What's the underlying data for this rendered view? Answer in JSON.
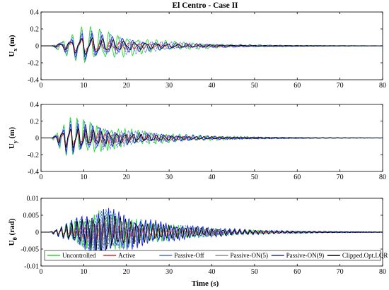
{
  "figure": {
    "title": "El Centro - Case II",
    "xlabel": "Time (s)"
  },
  "chart_data": [
    {
      "type": "line",
      "ylabel_main": "U",
      "ylabel_sub": "x",
      "ylabel_unit": "(m)",
      "xlim": [
        0,
        80
      ],
      "ylim": [
        -0.4,
        0.4
      ],
      "xticks": [
        "0",
        "10",
        "20",
        "30",
        "40",
        "50",
        "60",
        "70",
        "80"
      ],
      "yticks": [
        "-0.4",
        "-0.2",
        "0",
        "0.2",
        "0.4"
      ],
      "wave": {
        "onset": 2.5,
        "peak_time": 10.0,
        "peak_amplitude": 0.26,
        "decay_end": 55,
        "period": 2.2
      },
      "series": [
        {
          "name": "Uncontrolled",
          "color": "#22dd22",
          "amplitude_scale": 1.0
        },
        {
          "name": "Active",
          "color": "#ee2222",
          "amplitude_scale": 0.35
        },
        {
          "name": "Passive-Off",
          "color": "#4466ff",
          "amplitude_scale": 0.85
        },
        {
          "name": "Passive-ON(5)",
          "color": "#888888",
          "amplitude_scale": 0.55
        },
        {
          "name": "Passive-ON(9)",
          "color": "#1a2ad8",
          "amplitude_scale": 0.7
        },
        {
          "name": "Clipped.Opt.LQR",
          "color": "#000000",
          "amplitude_scale": 0.45
        }
      ]
    },
    {
      "type": "line",
      "ylabel_main": "U",
      "ylabel_sub": "y",
      "ylabel_unit": "(m)",
      "xlim": [
        0,
        80
      ],
      "ylim": [
        -0.4,
        0.4
      ],
      "xticks": [
        "0",
        "10",
        "20",
        "30",
        "40",
        "50",
        "60",
        "70",
        "80"
      ],
      "yticks": [
        "-0.4",
        "-0.2",
        "0",
        "0.2",
        "0.4"
      ],
      "wave": {
        "onset": 2.5,
        "peak_time": 6.5,
        "peak_amplitude": 0.28,
        "decay_end": 55,
        "period": 1.6
      },
      "series": [
        {
          "name": "Uncontrolled",
          "color": "#22dd22",
          "amplitude_scale": 1.0
        },
        {
          "name": "Active",
          "color": "#ee2222",
          "amplitude_scale": 0.4
        },
        {
          "name": "Passive-Off",
          "color": "#4466ff",
          "amplitude_scale": 0.9
        },
        {
          "name": "Passive-ON(5)",
          "color": "#888888",
          "amplitude_scale": 0.6
        },
        {
          "name": "Passive-ON(9)",
          "color": "#1a2ad8",
          "amplitude_scale": 0.75
        },
        {
          "name": "Clipped.Opt.LQR",
          "color": "#000000",
          "amplitude_scale": 0.5
        }
      ]
    },
    {
      "type": "line",
      "ylabel_main": "U",
      "ylabel_sub": "θ",
      "ylabel_unit": "(rad)",
      "xlim": [
        0,
        80
      ],
      "ylim": [
        -0.01,
        0.01
      ],
      "xticks": [
        "0",
        "10",
        "20",
        "30",
        "40",
        "50",
        "60",
        "70",
        "80"
      ],
      "yticks": [
        "-0.01",
        "-0.005",
        "0",
        "0.005",
        "0.01"
      ],
      "wave": {
        "onset": 2.0,
        "peak_time": 14.0,
        "peak_amplitude": 0.0085,
        "decay_end": 62,
        "period": 1.1
      },
      "series": [
        {
          "name": "Uncontrolled",
          "color": "#22dd22",
          "amplitude_scale": 0.85
        },
        {
          "name": "Active",
          "color": "#ee2222",
          "amplitude_scale": 0.35
        },
        {
          "name": "Passive-Off",
          "color": "#4466ff",
          "amplitude_scale": 0.9
        },
        {
          "name": "Passive-ON(5)",
          "color": "#888888",
          "amplitude_scale": 0.6
        },
        {
          "name": "Passive-ON(9)",
          "color": "#1a2ad8",
          "amplitude_scale": 1.0
        },
        {
          "name": "Clipped.Opt.LQR",
          "color": "#000000",
          "amplitude_scale": 0.75
        }
      ],
      "legend": {
        "placement": "bottom",
        "entries": [
          "Uncontrolled",
          "Active",
          "Passive-Off",
          "Passive-ON(5)",
          "Passive-ON(9)",
          "Clipped.Opt.LQR"
        ]
      }
    }
  ]
}
